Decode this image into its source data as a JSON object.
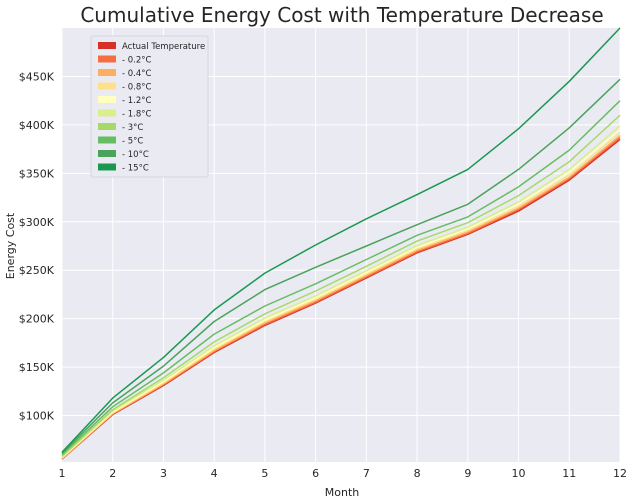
{
  "chart_data": {
    "type": "line",
    "title": "Cumulative Energy Cost with Temperature Decrease",
    "xlabel": "Month",
    "ylabel": "Energy Cost",
    "x": [
      1,
      2,
      3,
      4,
      5,
      6,
      7,
      8,
      9,
      10,
      11,
      12
    ],
    "xlim": [
      1,
      12
    ],
    "ylim": [
      52000,
      500000
    ],
    "y_ticks": [
      100000,
      150000,
      200000,
      250000,
      300000,
      350000,
      400000,
      450000
    ],
    "y_tick_labels": [
      "$100K",
      "$150K",
      "$200K",
      "$250K",
      "$300K",
      "$350K",
      "$400K",
      "$450K"
    ],
    "x_tick_labels": [
      "1",
      "2",
      "3",
      "4",
      "5",
      "6",
      "7",
      "8",
      "9",
      "10",
      "11",
      "12"
    ],
    "grid": true,
    "background": "#eaeaf2",
    "legend_position": "top-left",
    "series": [
      {
        "name": "Actual Temperature",
        "color": "#d73027",
        "values": [
          55000,
          101000,
          131000,
          165000,
          193000,
          216000,
          242000,
          268000,
          287000,
          311000,
          343000,
          385000
        ]
      },
      {
        "name": "- 0.2°C",
        "color": "#f46d43",
        "values": [
          55300,
          101500,
          131800,
          166000,
          194000,
          217000,
          243000,
          269000,
          288000,
          312500,
          344500,
          387000
        ]
      },
      {
        "name": "- 0.4°C",
        "color": "#fdae61",
        "values": [
          55600,
          102000,
          132600,
          167000,
          195500,
          218500,
          244500,
          270500,
          289500,
          314000,
          346000,
          389000
        ]
      },
      {
        "name": "- 0.8°C",
        "color": "#fee08b",
        "values": [
          56000,
          102800,
          133800,
          168500,
          197000,
          220000,
          246000,
          272000,
          291000,
          316000,
          348500,
          392000
        ]
      },
      {
        "name": "- 1.2°C",
        "color": "#ffffbf",
        "values": [
          56500,
          103600,
          135000,
          170000,
          198500,
          221500,
          247500,
          273500,
          292500,
          318000,
          351000,
          395000
        ]
      },
      {
        "name": "- 1.8°C",
        "color": "#d9ef8b",
        "values": [
          57000,
          104600,
          136500,
          172000,
          200500,
          223500,
          249500,
          275500,
          294500,
          320500,
          354000,
          399000
        ]
      },
      {
        "name": "- 3°C",
        "color": "#a6d96a",
        "values": [
          58000,
          106000,
          139000,
          176000,
          205000,
          228500,
          254000,
          280000,
          299000,
          327000,
          362000,
          410000
        ]
      },
      {
        "name": "- 5°C",
        "color": "#66bd63",
        "values": [
          59500,
          109000,
          144000,
          184000,
          213000,
          236000,
          261000,
          286000,
          305000,
          336000,
          374000,
          425000
        ]
      },
      {
        "name": "- 10°C",
        "color": "#4aa35a",
        "values": [
          61000,
          113000,
          151000,
          197000,
          230000,
          253000,
          275000,
          297000,
          318000,
          354000,
          397000,
          447000
        ]
      },
      {
        "name": "- 15°C",
        "color": "#1a9850",
        "values": [
          62000,
          118000,
          160000,
          209000,
          247000,
          276000,
          303000,
          328000,
          354000,
          396000,
          445000,
          501000
        ]
      }
    ]
  }
}
